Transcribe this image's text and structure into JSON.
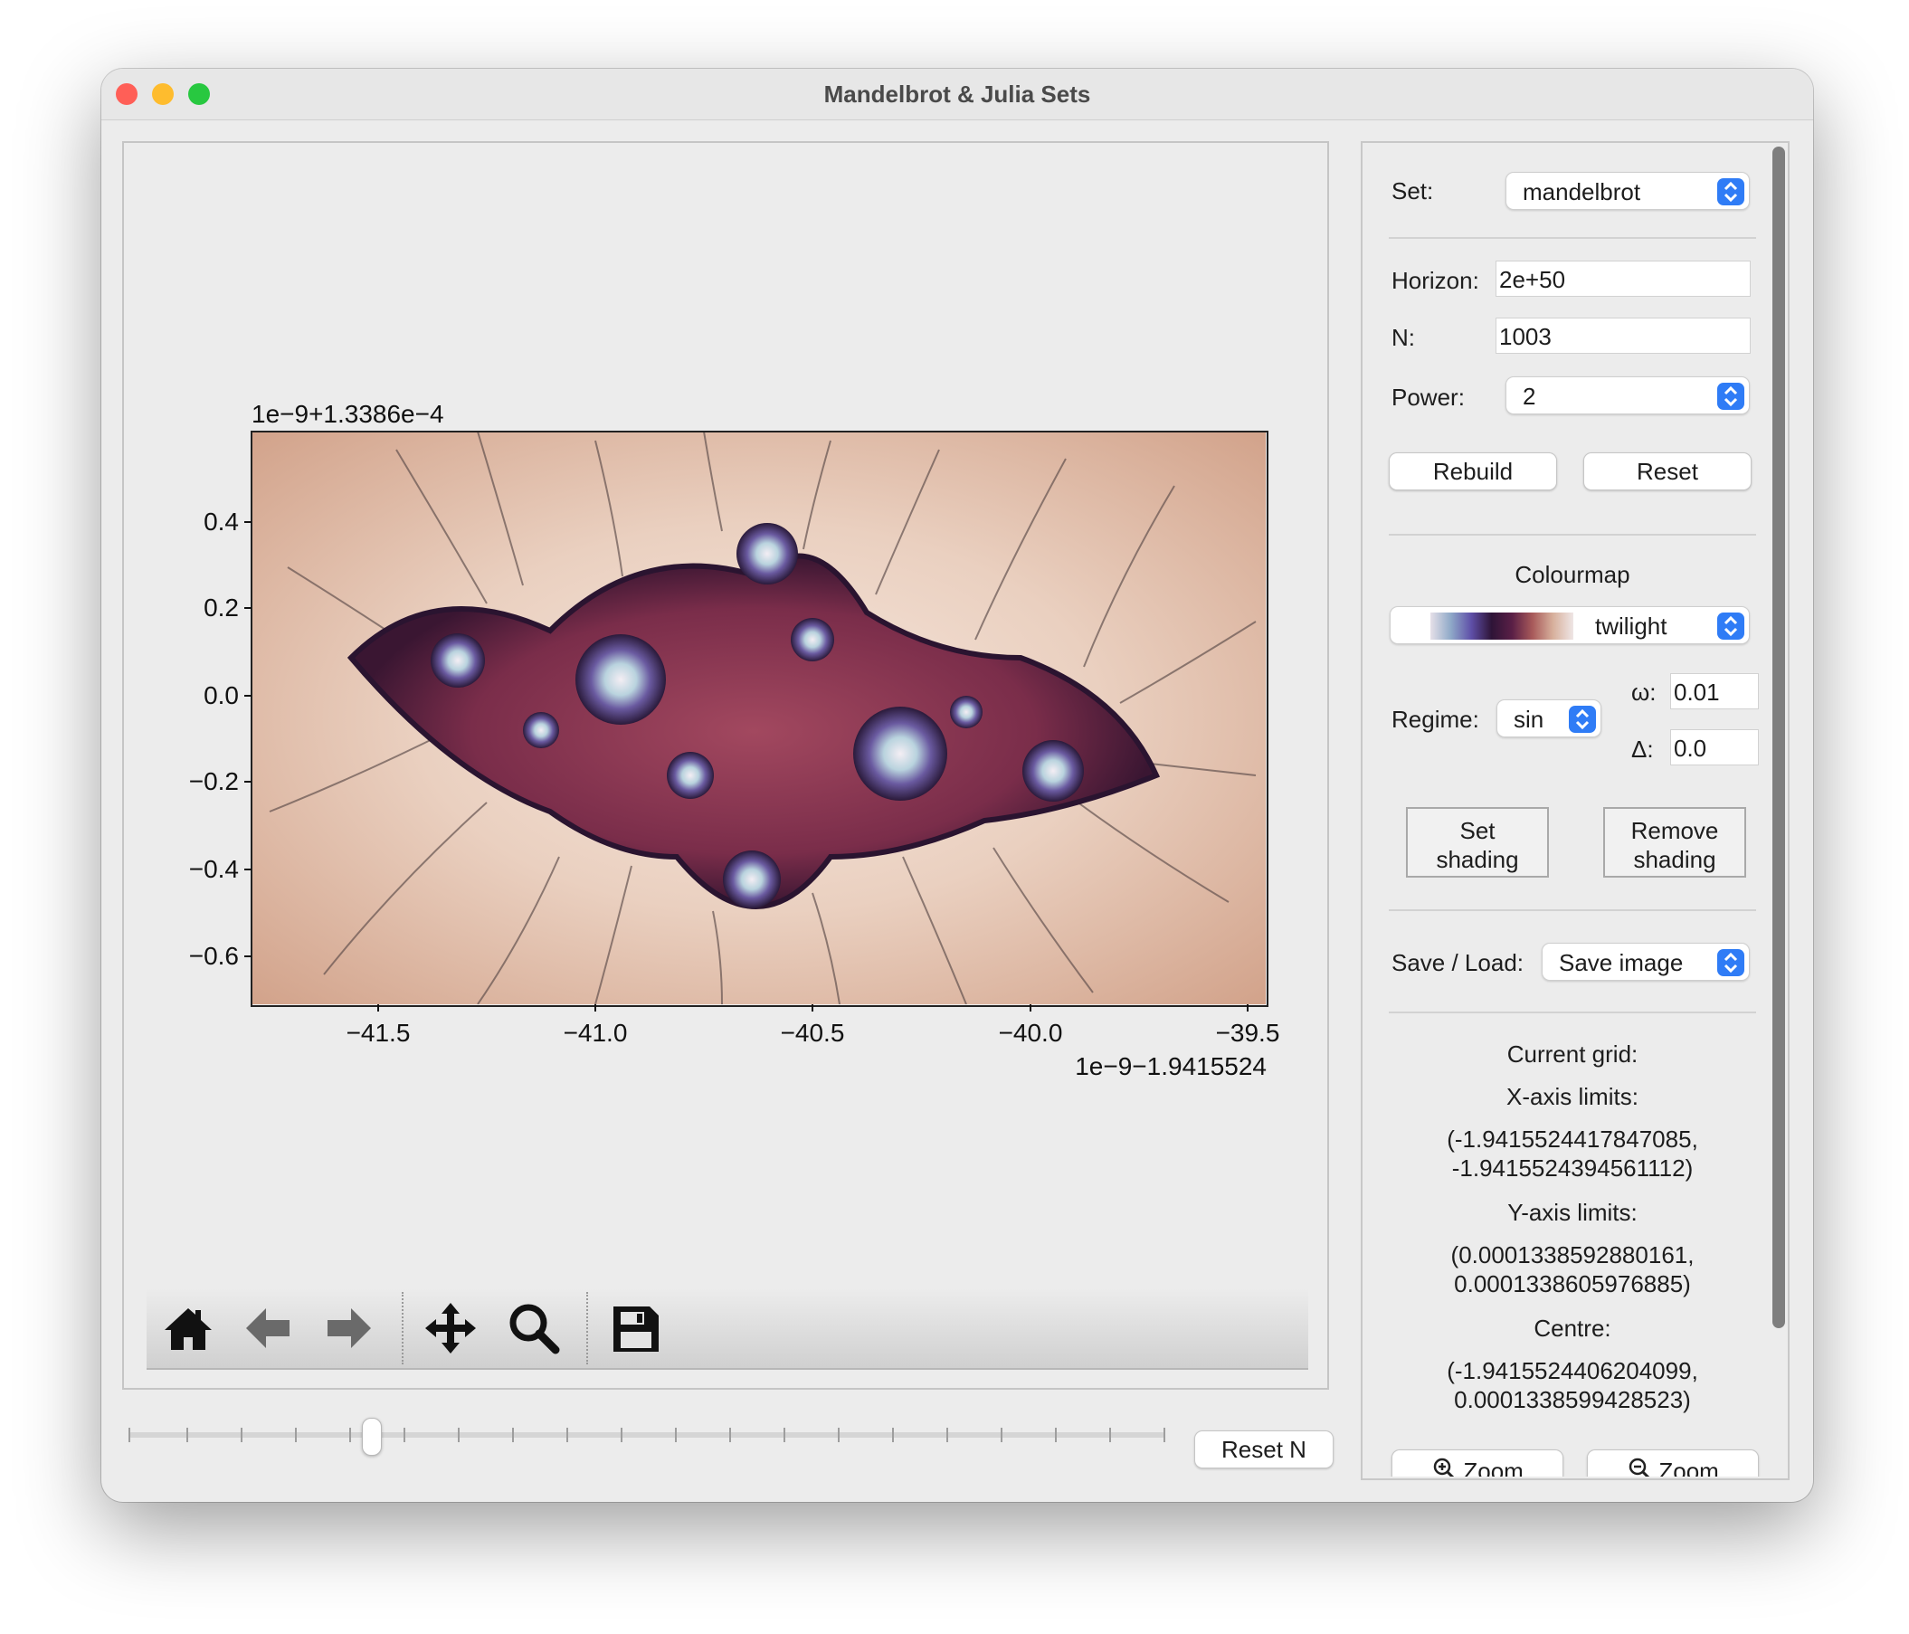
{
  "window": {
    "title": "Mandelbrot & Julia Sets"
  },
  "plot": {
    "y_offset_label": "1e−9+1.3386e−4",
    "x_offset_label": "1e−9−1.9415524",
    "y_ticks": [
      "0.4",
      "0.2",
      "0.0",
      "−0.2",
      "−0.4",
      "−0.6"
    ],
    "x_ticks": [
      "−41.5",
      "−41.0",
      "−40.5",
      "−40.0",
      "−39.5"
    ]
  },
  "toolbar": {
    "icons": [
      "home-icon",
      "back-arrow-icon",
      "forward-arrow-icon",
      "pan-move-icon",
      "zoom-magnifier-icon",
      "save-floppy-icon"
    ]
  },
  "bottom": {
    "slider_value_fraction": 0.23,
    "reset_n_label": "Reset N"
  },
  "sidebar": {
    "set_label": "Set:",
    "set_value": "mandelbrot",
    "horizon_label": "Horizon:",
    "horizon_value": "2e+50",
    "n_label": "N:",
    "n_value": "1003",
    "power_label": "Power:",
    "power_value": "2",
    "rebuild_label": "Rebuild",
    "reset_label": "Reset",
    "colourmap_heading": "Colourmap",
    "colourmap_value": "twilight",
    "regime_label": "Regime:",
    "regime_value": "sin",
    "omega_label": "ω:",
    "omega_value": "0.01",
    "delta_label": "Δ:",
    "delta_value": "0.0",
    "set_shading_line1": "Set",
    "set_shading_line2": "shading",
    "remove_shading_line1": "Remove",
    "remove_shading_line2": "shading",
    "save_load_label": "Save / Load:",
    "save_load_value": "Save image",
    "current_grid_label": "Current grid:",
    "x_limits_label": "X-axis limits:",
    "x_limits_line1": "(-1.9415524417847085,",
    "x_limits_line2": "-1.9415524394561112)",
    "y_limits_label": "Y-axis limits:",
    "y_limits_line1": "(0.0001338592880161,",
    "y_limits_line2": "0.0001338605976885)",
    "centre_label": "Centre:",
    "centre_line1": "(-1.9415524406204099,",
    "centre_line2": "0.0001338599428523)",
    "zoom_in_label": "Zoom",
    "zoom_out_label": "Zoom"
  },
  "colors": {
    "accent": "#2f7cf6",
    "close": "#ff5f57",
    "minimize": "#febc2e",
    "maximize": "#28c840"
  }
}
